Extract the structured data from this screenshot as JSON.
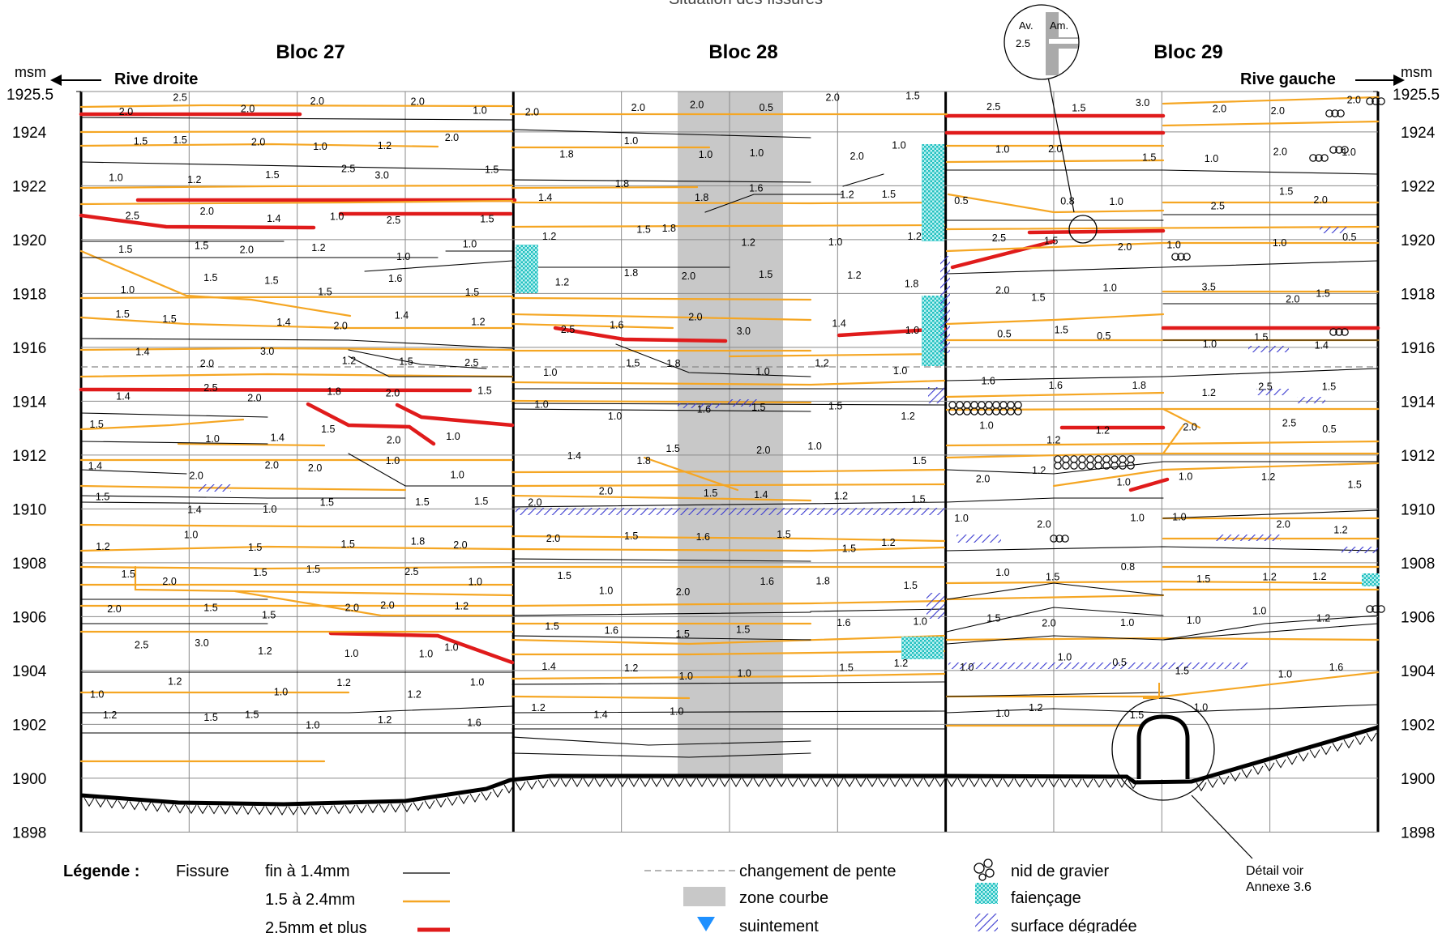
{
  "header_partial": "Situation des fissures",
  "blocks": [
    {
      "label": "Bloc 27"
    },
    {
      "label": "Bloc 28"
    },
    {
      "label": "Bloc 29"
    }
  ],
  "axis": {
    "unit_left": "msm",
    "unit_right": "msm",
    "top_value": "1925.5",
    "ticks": [
      "1924",
      "1922",
      "1920",
      "1918",
      "1916",
      "1914",
      "1912",
      "1910",
      "1908",
      "1906",
      "1904",
      "1902",
      "1900",
      "1898"
    ]
  },
  "directions": {
    "left": "Rive droite",
    "right": "Rive gauche"
  },
  "detail_inset": {
    "av": "Av.",
    "am": "Am.",
    "value": "2.5"
  },
  "detail_note": {
    "line1": "Détail voir",
    "line2": "Annexe 3.6"
  },
  "legend": {
    "title": "Légende :",
    "fissure_label": "Fissure",
    "fine": "fin à  1.4mm",
    "medium": "1.5 à 2.4mm",
    "wide": "2.5mm et plus",
    "slope_change": "changement de pente",
    "curved_zone": "zone courbe",
    "seepage": "suintement",
    "gravel_nest": "nid de gravier",
    "crazing": "faiençage",
    "degraded_surface": "surface dégradée"
  },
  "colors": {
    "fine_crack": "#000000",
    "medium_crack": "#f5a623",
    "wide_crack": "#e01b1b",
    "curved_zone": "#c8c8c8",
    "crazing": "#33c8c8",
    "degraded": "#3b3bd0",
    "seepage": "#1e90ff",
    "grid": "#7a7a7a"
  },
  "crack_labels": {
    "b27": [
      {
        "v": "2.0"
      },
      {
        "v": "2.5"
      },
      {
        "v": "2.0"
      },
      {
        "v": "2.0"
      },
      {
        "v": "2.0"
      },
      {
        "v": "1.0"
      },
      {
        "v": "1.5"
      },
      {
        "v": "1.5"
      },
      {
        "v": "2.0"
      },
      {
        "v": "1.0"
      },
      {
        "v": "1.2"
      },
      {
        "v": "2.0"
      },
      {
        "v": "1.0"
      },
      {
        "v": "1.2"
      },
      {
        "v": "1.5"
      },
      {
        "v": "2.5"
      },
      {
        "v": "3.0"
      },
      {
        "v": "1.5"
      },
      {
        "v": "2.5"
      },
      {
        "v": "2.0"
      },
      {
        "v": "1.4"
      },
      {
        "v": "1.0"
      },
      {
        "v": "2.5"
      },
      {
        "v": "1.5"
      },
      {
        "v": "1.5"
      },
      {
        "v": "1.5"
      },
      {
        "v": "2.0"
      },
      {
        "v": "1.2"
      },
      {
        "v": "1.0"
      },
      {
        "v": "1.0"
      },
      {
        "v": "1.0"
      },
      {
        "v": "1.5"
      },
      {
        "v": "1.5"
      },
      {
        "v": "1.5"
      },
      {
        "v": "1.6"
      },
      {
        "v": "1.5"
      },
      {
        "v": "1.5"
      },
      {
        "v": "1.5"
      },
      {
        "v": "1.4"
      },
      {
        "v": "2.0"
      },
      {
        "v": "1.4"
      },
      {
        "v": "1.2"
      },
      {
        "v": "1.4"
      },
      {
        "v": "2.0"
      },
      {
        "v": "3.0"
      },
      {
        "v": "1.2"
      },
      {
        "v": "1.5"
      },
      {
        "v": "2.5"
      },
      {
        "v": "1.4"
      },
      {
        "v": "2.5"
      },
      {
        "v": "2.0"
      },
      {
        "v": "1.8"
      },
      {
        "v": "2.0"
      },
      {
        "v": "1.5"
      },
      {
        "v": "1.5"
      },
      {
        "v": "1.0"
      },
      {
        "v": "1.4"
      },
      {
        "v": "1.5"
      },
      {
        "v": "2.0"
      },
      {
        "v": "1.0"
      },
      {
        "v": "1.4"
      },
      {
        "v": "2.0"
      },
      {
        "v": "2.0"
      },
      {
        "v": "2.0"
      },
      {
        "v": "1.0"
      },
      {
        "v": "1.0"
      },
      {
        "v": "1.5"
      },
      {
        "v": "1.4"
      },
      {
        "v": "1.0"
      },
      {
        "v": "1.5"
      },
      {
        "v": "1.5"
      },
      {
        "v": "1.5"
      },
      {
        "v": "1.2"
      },
      {
        "v": "1.0"
      },
      {
        "v": "1.5"
      },
      {
        "v": "1.5"
      },
      {
        "v": "1.8"
      },
      {
        "v": "2.0"
      },
      {
        "v": "1.5"
      },
      {
        "v": "2.0"
      },
      {
        "v": "1.5"
      },
      {
        "v": "1.5"
      },
      {
        "v": "2.5"
      },
      {
        "v": "1.0"
      },
      {
        "v": "2.0"
      },
      {
        "v": "1.5"
      },
      {
        "v": "1.5"
      },
      {
        "v": "2.0"
      },
      {
        "v": "2.0"
      },
      {
        "v": "1.2"
      },
      {
        "v": "2.5"
      },
      {
        "v": "3.0"
      },
      {
        "v": "1.2"
      },
      {
        "v": "1.0"
      },
      {
        "v": "1.0"
      },
      {
        "v": "1.0"
      },
      {
        "v": "1.0"
      },
      {
        "v": "1.2"
      },
      {
        "v": "1.0"
      },
      {
        "v": "1.2"
      },
      {
        "v": "1.2"
      },
      {
        "v": "1.0"
      },
      {
        "v": "1.2"
      },
      {
        "v": "1.5"
      },
      {
        "v": "1.5"
      },
      {
        "v": "1.0"
      },
      {
        "v": "1.2"
      },
      {
        "v": "1.6"
      }
    ],
    "b28": [
      {
        "v": "2.0"
      },
      {
        "v": "2.0"
      },
      {
        "v": "2.0"
      },
      {
        "v": "0.5"
      },
      {
        "v": "2.0"
      },
      {
        "v": "1.5"
      },
      {
        "v": "1.8"
      },
      {
        "v": "1.0"
      },
      {
        "v": "1.0"
      },
      {
        "v": "1.0"
      },
      {
        "v": "2.0"
      },
      {
        "v": "1.0"
      },
      {
        "v": "1.4"
      },
      {
        "v": "1.8"
      },
      {
        "v": "1.8"
      },
      {
        "v": "1.6"
      },
      {
        "v": "1.2"
      },
      {
        "v": "1.5"
      },
      {
        "v": "1.2"
      },
      {
        "v": "1.5"
      },
      {
        "v": "1.8"
      },
      {
        "v": "1.2"
      },
      {
        "v": "1.0"
      },
      {
        "v": "1.2"
      },
      {
        "v": "1.2"
      },
      {
        "v": "1.8"
      },
      {
        "v": "2.0"
      },
      {
        "v": "1.5"
      },
      {
        "v": "1.2"
      },
      {
        "v": "1.8"
      },
      {
        "v": "2.5"
      },
      {
        "v": "1.6"
      },
      {
        "v": "2.0"
      },
      {
        "v": "3.0"
      },
      {
        "v": "1.4"
      },
      {
        "v": "1.0"
      },
      {
        "v": "1.0"
      },
      {
        "v": "1.5"
      },
      {
        "v": "1.8"
      },
      {
        "v": "1.0"
      },
      {
        "v": "1.2"
      },
      {
        "v": "1.0"
      },
      {
        "v": "1.0"
      },
      {
        "v": "1.0"
      },
      {
        "v": "1.6"
      },
      {
        "v": "1.5"
      },
      {
        "v": "1.5"
      },
      {
        "v": "1.2"
      },
      {
        "v": "1.4"
      },
      {
        "v": "1.8"
      },
      {
        "v": "1.5"
      },
      {
        "v": "2.0"
      },
      {
        "v": "1.0"
      },
      {
        "v": "1.5"
      },
      {
        "v": "2.0"
      },
      {
        "v": "2.0"
      },
      {
        "v": "1.5"
      },
      {
        "v": "1.4"
      },
      {
        "v": "1.2"
      },
      {
        "v": "1.5"
      },
      {
        "v": "2.0"
      },
      {
        "v": "1.5"
      },
      {
        "v": "1.6"
      },
      {
        "v": "1.5"
      },
      {
        "v": "1.5"
      },
      {
        "v": "1.2"
      },
      {
        "v": "1.5"
      },
      {
        "v": "1.0"
      },
      {
        "v": "2.0"
      },
      {
        "v": "1.6"
      },
      {
        "v": "1.8"
      },
      {
        "v": "1.5"
      },
      {
        "v": "1.5"
      },
      {
        "v": "1.6"
      },
      {
        "v": "1.5"
      },
      {
        "v": "1.5"
      },
      {
        "v": "1.6"
      },
      {
        "v": "1.0"
      },
      {
        "v": "1.4"
      },
      {
        "v": "1.2"
      },
      {
        "v": "1.0"
      },
      {
        "v": "1.0"
      },
      {
        "v": "1.5"
      },
      {
        "v": "1.2"
      },
      {
        "v": "1.2"
      },
      {
        "v": "1.4"
      },
      {
        "v": "1.0"
      }
    ],
    "b29": [
      {
        "v": "2.5"
      },
      {
        "v": "1.5"
      },
      {
        "v": "3.0"
      },
      {
        "v": "2.0"
      },
      {
        "v": "2.0"
      },
      {
        "v": "2.0"
      },
      {
        "v": "1.0"
      },
      {
        "v": "2.0"
      },
      {
        "v": "1.5"
      },
      {
        "v": "1.0"
      },
      {
        "v": "2.0"
      },
      {
        "v": "1.0"
      },
      {
        "v": "0.5"
      },
      {
        "v": "0.8"
      },
      {
        "v": "1.0"
      },
      {
        "v": "2.5"
      },
      {
        "v": "1.5"
      },
      {
        "v": "2.0"
      },
      {
        "v": "2.5"
      },
      {
        "v": "1.5"
      },
      {
        "v": "2.0"
      },
      {
        "v": "1.0"
      },
      {
        "v": "1.0"
      },
      {
        "v": "0.5"
      },
      {
        "v": "2.0"
      },
      {
        "v": "1.5"
      },
      {
        "v": "1.0"
      },
      {
        "v": "3.5"
      },
      {
        "v": "2.0"
      },
      {
        "v": "1.5"
      },
      {
        "v": "0.5"
      },
      {
        "v": "1.5"
      },
      {
        "v": "0.5"
      },
      {
        "v": "1.0"
      },
      {
        "v": "1.5"
      },
      {
        "v": "1.4"
      },
      {
        "v": "1.6"
      },
      {
        "v": "1.6"
      },
      {
        "v": "1.8"
      },
      {
        "v": "1.2"
      },
      {
        "v": "2.5"
      },
      {
        "v": "1.5"
      },
      {
        "v": "1.0"
      },
      {
        "v": "1.2"
      },
      {
        "v": "1.2"
      },
      {
        "v": "2.0"
      },
      {
        "v": "2.5"
      },
      {
        "v": "0.5"
      },
      {
        "v": "2.0"
      },
      {
        "v": "1.2"
      },
      {
        "v": "1.0"
      },
      {
        "v": "1.0"
      },
      {
        "v": "1.2"
      },
      {
        "v": "1.5"
      },
      {
        "v": "1.0"
      },
      {
        "v": "2.0"
      },
      {
        "v": "1.0"
      },
      {
        "v": "1.0"
      },
      {
        "v": "2.0"
      },
      {
        "v": "1.2"
      },
      {
        "v": "1.0"
      },
      {
        "v": "1.5"
      },
      {
        "v": "0.8"
      },
      {
        "v": "1.5"
      },
      {
        "v": "1.2"
      },
      {
        "v": "1.2"
      },
      {
        "v": "1.5"
      },
      {
        "v": "2.0"
      },
      {
        "v": "1.0"
      },
      {
        "v": "1.0"
      },
      {
        "v": "1.0"
      },
      {
        "v": "1.2"
      },
      {
        "v": "1.0"
      },
      {
        "v": "1.0"
      },
      {
        "v": "0.5"
      },
      {
        "v": "1.5"
      },
      {
        "v": "1.0"
      },
      {
        "v": "1.6"
      },
      {
        "v": "1.0"
      },
      {
        "v": "1.2"
      },
      {
        "v": "1.5"
      },
      {
        "v": "1.0"
      }
    ]
  }
}
